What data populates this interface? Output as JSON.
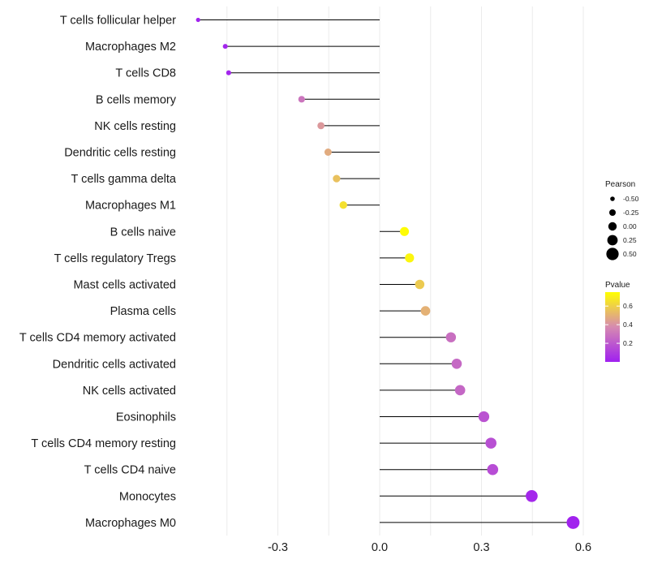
{
  "chart_data": {
    "type": "lollipop",
    "title": "",
    "xlabel": "",
    "ylabel": "",
    "xlim": [
      -0.55,
      0.63
    ],
    "x_ticks": [
      -0.3,
      0.0,
      0.3,
      0.6
    ],
    "x_tick_labels": [
      "-0.3",
      "0.0",
      "0.3",
      "0.6"
    ],
    "grid": "vertical",
    "categories": [
      "T cells follicular helper",
      "Macrophages M2",
      "T cells CD8",
      "B cells memory",
      "NK cells resting",
      "Dendritic cells resting",
      "T cells gamma delta",
      "Macrophages M1",
      "B cells naive",
      "T cells regulatory  Tregs ",
      "Mast cells activated",
      "Plasma cells",
      "T cells CD4 memory activated",
      "Dendritic cells activated",
      "NK cells activated",
      "Eosinophils",
      "T cells CD4 memory resting",
      "T cells CD4 naive",
      "Monocytes",
      "Macrophages M0"
    ],
    "pearson": [
      -0.535,
      -0.455,
      -0.445,
      -0.23,
      -0.173,
      -0.152,
      -0.127,
      -0.107,
      0.073,
      0.088,
      0.118,
      0.135,
      0.21,
      0.227,
      0.237,
      0.307,
      0.328,
      0.333,
      0.448,
      0.57
    ],
    "pvalue": [
      0.01,
      0.02,
      0.02,
      0.3,
      0.42,
      0.48,
      0.55,
      0.65,
      0.74,
      0.72,
      0.58,
      0.5,
      0.28,
      0.26,
      0.25,
      0.18,
      0.17,
      0.16,
      0.03,
      0.01
    ],
    "legend": {
      "size_title": "Pearson",
      "size_values": [
        -0.5,
        -0.25,
        0.0,
        0.25,
        0.5
      ],
      "size_labels": [
        "-0.50",
        "-0.25",
        "0.00",
        "0.25",
        "0.50"
      ],
      "color_title": "Pvalue",
      "color_ticks": [
        0.6,
        0.4,
        0.2
      ],
      "color_tick_labels": [
        "0.6",
        "0.4",
        "0.2"
      ],
      "color_range": [
        0.0,
        0.75
      ],
      "color_low": "#a020f0",
      "color_mid": "#d68ab0",
      "color_high": "#ffff00",
      "position": "right"
    },
    "line_color": "#000000"
  }
}
